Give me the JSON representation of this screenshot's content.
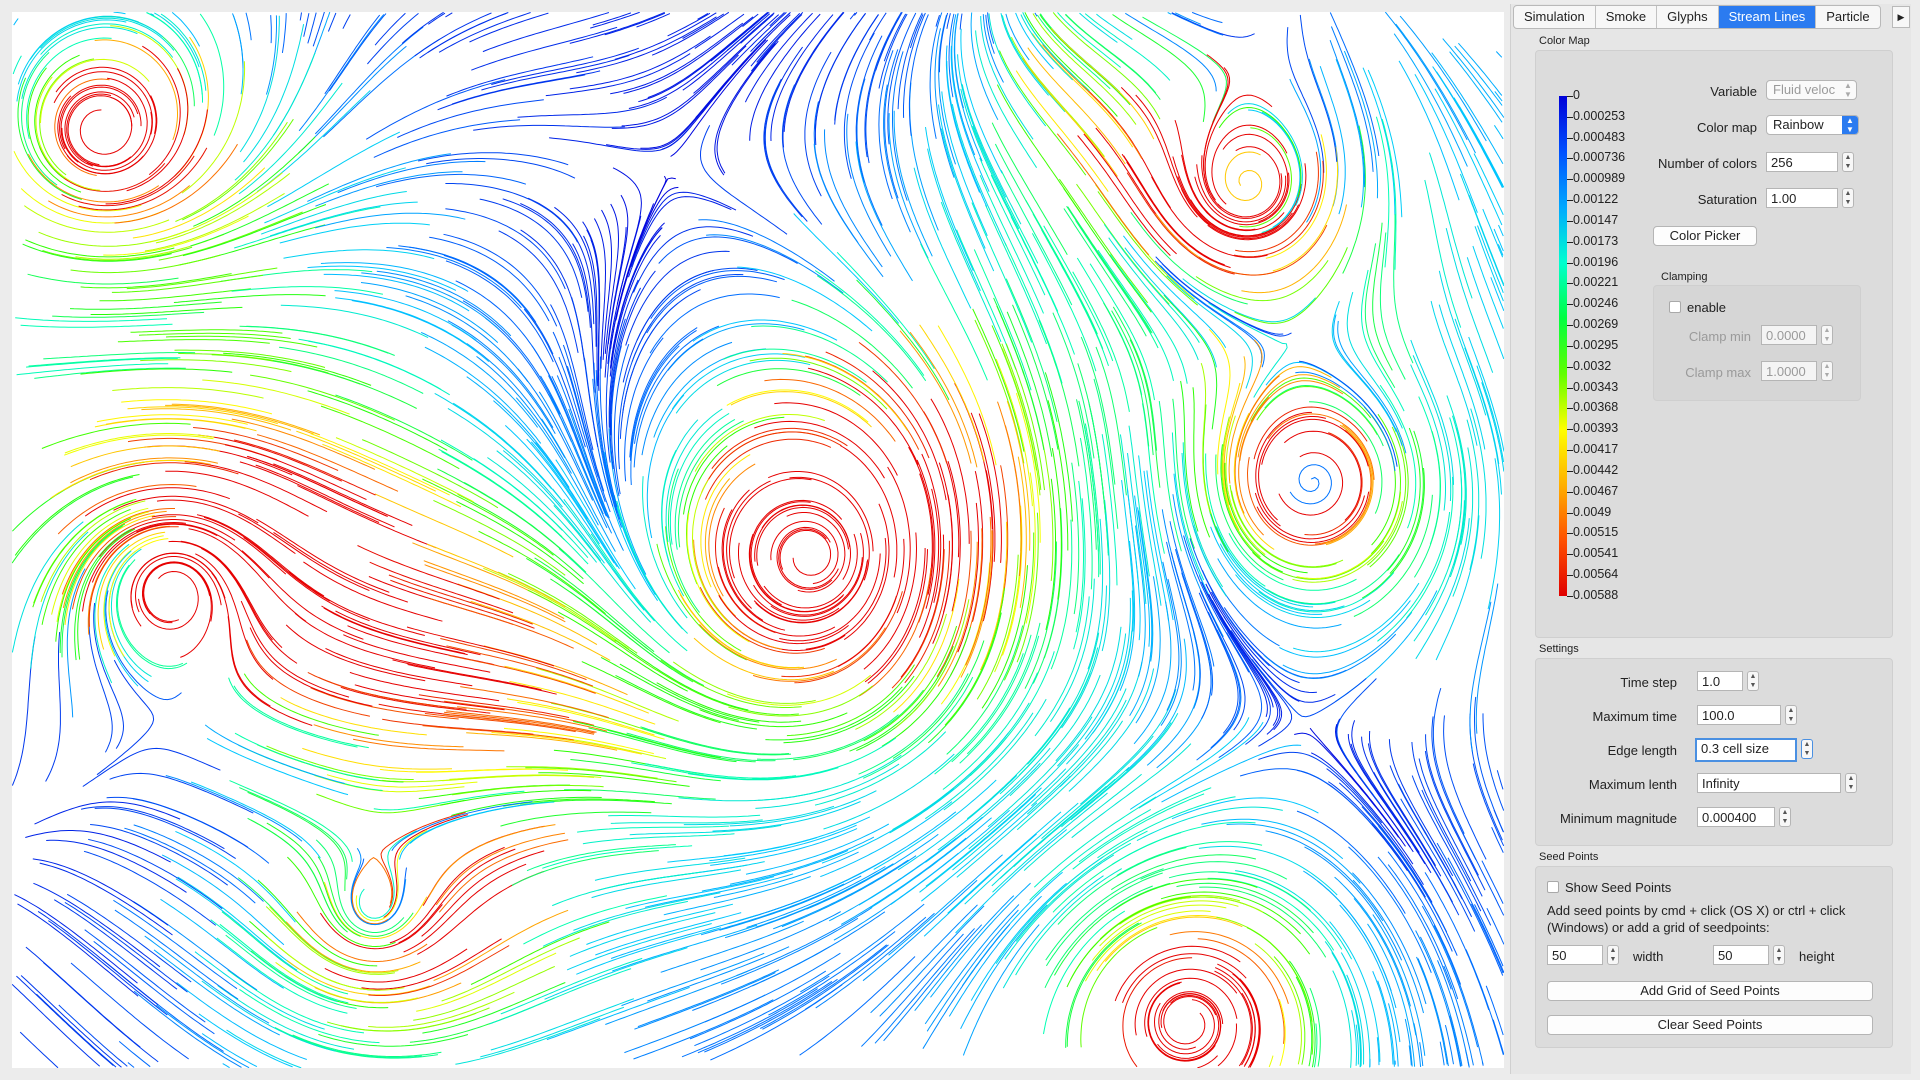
{
  "tabs": [
    {
      "label": "Simulation",
      "active": false
    },
    {
      "label": "Smoke",
      "active": false
    },
    {
      "label": "Glyphs",
      "active": false
    },
    {
      "label": "Stream Lines",
      "active": true
    },
    {
      "label": "Particle",
      "active": false
    }
  ],
  "colormap": {
    "title": "Color Map",
    "variable_label": "Variable",
    "variable_value": "Fluid veloc",
    "colormap_label": "Color map",
    "colormap_value": "Rainbow",
    "ncolors_label": "Number of colors",
    "ncolors_value": "256",
    "saturation_label": "Saturation",
    "saturation_value": "1.00",
    "color_picker": "Color Picker",
    "clamping_title": "Clamping",
    "enable_label": "enable",
    "clamp_min_label": "Clamp min",
    "clamp_min_value": "0.0000",
    "clamp_max_label": "Clamp max",
    "clamp_max_value": "1.0000",
    "legend": [
      "0",
      "0.000253",
      "0.000483",
      "0.000736",
      "0.000989",
      "0.00122",
      "0.00147",
      "0.00173",
      "0.00196",
      "0.00221",
      "0.00246",
      "0.00269",
      "0.00295",
      "0.0032",
      "0.00343",
      "0.00368",
      "0.00393",
      "0.00417",
      "0.00442",
      "0.00467",
      "0.0049",
      "0.00515",
      "0.00541",
      "0.00564",
      "0.00588"
    ]
  },
  "settings": {
    "title": "Settings",
    "time_step_label": "Time step",
    "time_step_value": "1.0",
    "max_time_label": "Maximum time",
    "max_time_value": "100.0",
    "edge_length_label": "Edge length",
    "edge_length_value": "0.3 cell size",
    "max_length_label": "Maximum lenth",
    "max_length_value": "Infinity",
    "min_magnitude_label": "Minimum magnitude",
    "min_magnitude_value": "0.000400"
  },
  "seeds": {
    "title": "Seed Points",
    "show_label": "Show Seed Points",
    "help": "Add seed points by cmd + click (OS X) or ctrl + click (Windows) or add a grid of seedpoints:",
    "width_value": "50",
    "width_label": "width",
    "height_value": "50",
    "height_label": "height",
    "add_grid": "Add Grid of Seed Points",
    "clear": "Clear Seed Points"
  },
  "colors": {
    "accent": "#2b7bf0",
    "background": "#ececec"
  }
}
